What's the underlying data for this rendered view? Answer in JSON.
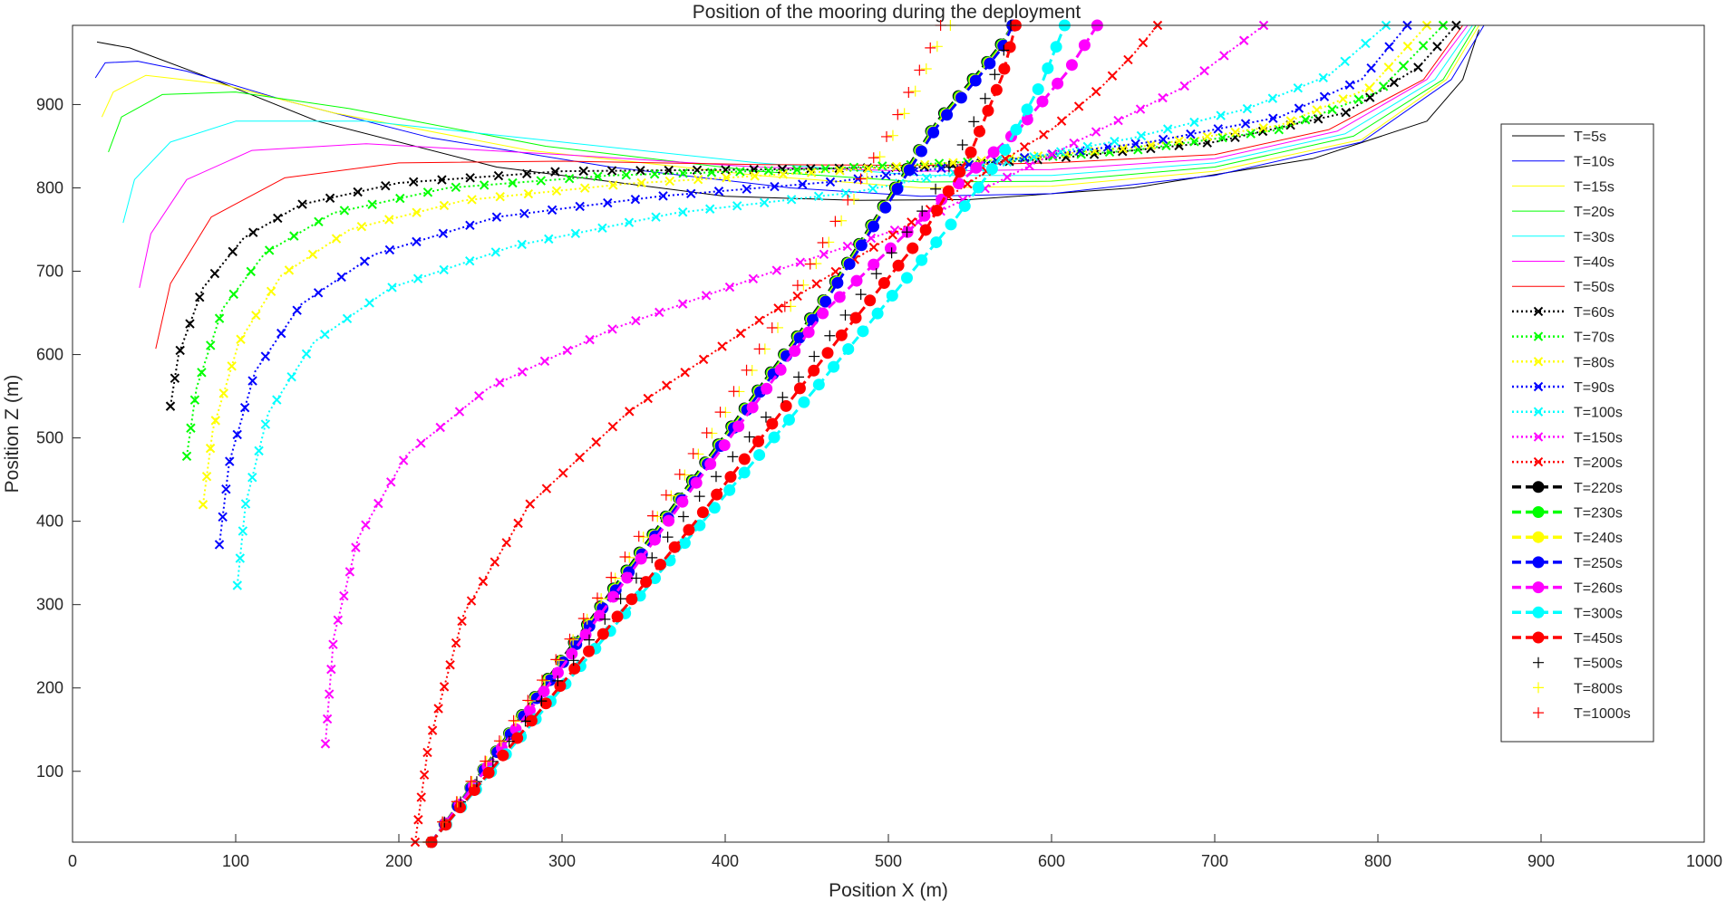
{
  "chart_data": {
    "type": "line",
    "title": "Position of the mooring during the deployment",
    "xlabel": "Position X (m)",
    "ylabel": "Position Z (m)",
    "xlim": [
      0,
      1000
    ],
    "ylim": [
      15,
      995
    ],
    "xticks": [
      0,
      100,
      200,
      300,
      400,
      500,
      600,
      700,
      800,
      900,
      1000
    ],
    "yticks": [
      100,
      200,
      300,
      400,
      500,
      600,
      700,
      800,
      900
    ],
    "grid": false,
    "legend_position": "right",
    "series": [
      {
        "name": "T=5s",
        "color": "#000000",
        "line": "solid",
        "marker": "none",
        "x": [
          15,
          35,
          80,
          150,
          260,
          400,
          480,
          550,
          650,
          760,
          830,
          852,
          862
        ],
        "y": [
          975,
          968,
          935,
          880,
          825,
          790,
          785,
          786,
          800,
          835,
          880,
          930,
          990
        ]
      },
      {
        "name": "T=10s",
        "color": "#0000ff",
        "line": "solid",
        "marker": "none",
        "x": [
          14,
          20,
          40,
          70,
          130,
          220,
          330,
          440,
          520,
          600,
          700,
          790,
          845,
          865
        ],
        "y": [
          932,
          950,
          952,
          940,
          905,
          860,
          825,
          800,
          790,
          793,
          815,
          855,
          930,
          995
        ]
      },
      {
        "name": "T=15s",
        "color": "#ffff00",
        "line": "solid",
        "marker": "none",
        "x": [
          18,
          25,
          45,
          90,
          160,
          280,
          420,
          520,
          600,
          700,
          790,
          842,
          862
        ],
        "y": [
          885,
          915,
          935,
          925,
          890,
          845,
          815,
          800,
          802,
          820,
          858,
          930,
          995
        ]
      },
      {
        "name": "T=20s",
        "color": "#00ff00",
        "line": "solid",
        "marker": "none",
        "x": [
          22,
          30,
          55,
          100,
          170,
          290,
          420,
          520,
          600,
          700,
          785,
          840,
          860
        ],
        "y": [
          843,
          885,
          912,
          915,
          895,
          850,
          820,
          807,
          808,
          825,
          862,
          930,
          995
        ]
      },
      {
        "name": "T=30s",
        "color": "#00ffff",
        "line": "solid",
        "marker": "none",
        "x": [
          31,
          38,
          60,
          100,
          180,
          300,
          420,
          520,
          600,
          700,
          780,
          835,
          858
        ],
        "y": [
          758,
          810,
          855,
          880,
          880,
          855,
          830,
          815,
          815,
          830,
          865,
          930,
          995
        ]
      },
      {
        "name": "T=40s",
        "color": "#ff00ff",
        "line": "solid",
        "marker": "none",
        "x": [
          41,
          48,
          70,
          110,
          180,
          300,
          420,
          520,
          600,
          700,
          775,
          830,
          855
        ],
        "y": [
          680,
          745,
          810,
          845,
          853,
          840,
          825,
          820,
          822,
          835,
          868,
          930,
          995
        ]
      },
      {
        "name": "T=50s",
        "color": "#ff0000",
        "line": "solid",
        "marker": "none",
        "x": [
          51,
          60,
          85,
          130,
          200,
          300,
          420,
          520,
          600,
          700,
          770,
          828,
          852
        ],
        "y": [
          607,
          685,
          765,
          812,
          830,
          832,
          828,
          827,
          830,
          840,
          870,
          930,
          995
        ]
      },
      {
        "name": "T=60s",
        "color": "#000000",
        "line": "dotted",
        "marker": "x",
        "x": [
          60,
          65,
          80,
          105,
          140,
          200,
          300,
          420,
          520,
          600,
          700,
          780,
          825,
          848
        ],
        "y": [
          538,
          600,
          680,
          740,
          780,
          806,
          820,
          822,
          825,
          835,
          855,
          890,
          945,
          995
        ]
      },
      {
        "name": "T=70s",
        "color": "#00ff00",
        "line": "dotted",
        "marker": "x",
        "x": [
          70,
          76,
          92,
          118,
          160,
          230,
          330,
          450,
          560,
          650,
          740,
          800,
          840
        ],
        "y": [
          478,
          560,
          655,
          722,
          770,
          800,
          815,
          822,
          832,
          845,
          870,
          915,
          995
        ]
      },
      {
        "name": "T=80s",
        "color": "#ffff00",
        "line": "dotted",
        "marker": "x",
        "x": [
          80,
          86,
          102,
          128,
          170,
          240,
          340,
          450,
          560,
          650,
          740,
          795,
          830
        ],
        "y": [
          420,
          510,
          615,
          695,
          750,
          785,
          805,
          818,
          833,
          848,
          875,
          920,
          995
        ]
      },
      {
        "name": "T=90s",
        "color": "#0000ff",
        "line": "dotted",
        "marker": "x",
        "x": [
          90,
          96,
          112,
          140,
          185,
          260,
          360,
          470,
          570,
          660,
          740,
          790,
          818
        ],
        "y": [
          372,
          470,
          580,
          660,
          720,
          765,
          790,
          808,
          833,
          855,
          885,
          930,
          995
        ]
      },
      {
        "name": "T=100s",
        "color": "#00ffff",
        "line": "dotted",
        "marker": "x",
        "x": [
          101,
          106,
          120,
          148,
          195,
          270,
          370,
          480,
          570,
          650,
          720,
          770,
          805
        ],
        "y": [
          323,
          420,
          530,
          615,
          680,
          730,
          770,
          795,
          830,
          860,
          895,
          935,
          995
        ]
      },
      {
        "name": "T=150s",
        "color": "#ff00ff",
        "line": "dotted",
        "marker": "x",
        "x": [
          155,
          160,
          175,
          205,
          255,
          330,
          430,
          520,
          580,
          630,
          680,
          730
        ],
        "y": [
          133,
          260,
          380,
          480,
          560,
          630,
          700,
          760,
          820,
          870,
          920,
          995
        ]
      },
      {
        "name": "T=200s",
        "color": "#ff0000",
        "line": "dotted",
        "marker": "x",
        "x": [
          210,
          218,
          240,
          280,
          340,
          420,
          500,
          560,
          600,
          630,
          650,
          665
        ],
        "y": [
          15,
          130,
          290,
          420,
          530,
          640,
          740,
          820,
          870,
          920,
          960,
          995
        ]
      },
      {
        "name": "T=220s",
        "color": "#000000",
        "line": "dashed",
        "marker": "o",
        "x": [
          220,
          300,
          380,
          460,
          530,
          560,
          570,
          576
        ],
        "y": [
          15,
          235,
          450,
          665,
          880,
          950,
          975,
          995
        ]
      },
      {
        "name": "T=230s",
        "color": "#00ff00",
        "line": "dashed",
        "marker": "o",
        "x": [
          220,
          300,
          380,
          460,
          530,
          560,
          570,
          576
        ],
        "y": [
          15,
          233,
          448,
          663,
          878,
          948,
          973,
          995
        ]
      },
      {
        "name": "T=240s",
        "color": "#ffff00",
        "line": "dashed",
        "marker": "o",
        "x": [
          220,
          300,
          380,
          460,
          530,
          560,
          570,
          576
        ],
        "y": [
          15,
          231,
          446,
          661,
          876,
          946,
          971,
          995
        ]
      },
      {
        "name": "T=250s",
        "color": "#0000ff",
        "line": "dashed",
        "marker": "o",
        "x": [
          220,
          300,
          380,
          460,
          530,
          560,
          570,
          576
        ],
        "y": [
          15,
          229,
          444,
          659,
          874,
          944,
          969,
          995
        ]
      },
      {
        "name": "T=260s",
        "color": "#ff00ff",
        "line": "dashed",
        "marker": "o",
        "x": [
          220,
          300,
          380,
          460,
          540,
          580,
          610,
          628
        ],
        "y": [
          15,
          225,
          440,
          650,
          800,
          870,
          940,
          995
        ]
      },
      {
        "name": "T=300s",
        "color": "#00ffff",
        "line": "dashed",
        "marker": "o",
        "x": [
          220,
          300,
          380,
          460,
          540,
          570,
          595,
          608
        ],
        "y": [
          15,
          200,
          385,
          570,
          760,
          840,
          930,
          995
        ]
      },
      {
        "name": "T=450s",
        "color": "#ff0000",
        "line": "dashed",
        "marker": "o",
        "x": [
          220,
          300,
          380,
          430,
          470,
          520,
          550,
          570,
          578
        ],
        "y": [
          15,
          205,
          395,
          520,
          620,
          740,
          840,
          935,
          995
        ]
      },
      {
        "name": "T=500s",
        "color": "#000000",
        "line": "none",
        "marker": "+",
        "x": [
          218,
          300,
          380,
          440,
          490,
          520,
          545,
          560,
          570,
          575
        ],
        "y": [
          15,
          215,
          420,
          560,
          690,
          770,
          850,
          910,
          960,
          995
        ]
      },
      {
        "name": "T=800s",
        "color": "#ffff00",
        "line": "none",
        "marker": "+",
        "x": [
          218,
          290,
          360,
          410,
          450,
          480,
          505,
          520,
          530,
          538
        ],
        "y": [
          15,
          210,
          410,
          560,
          690,
          790,
          870,
          930,
          970,
          995
        ]
      },
      {
        "name": "T=1000s",
        "color": "#ff0000",
        "line": "none",
        "marker": "+",
        "x": [
          218,
          288,
          355,
          405,
          445,
          475,
          500,
          515,
          525,
          532
        ],
        "y": [
          15,
          210,
          405,
          555,
          685,
          785,
          865,
          925,
          965,
          995
        ]
      }
    ]
  }
}
